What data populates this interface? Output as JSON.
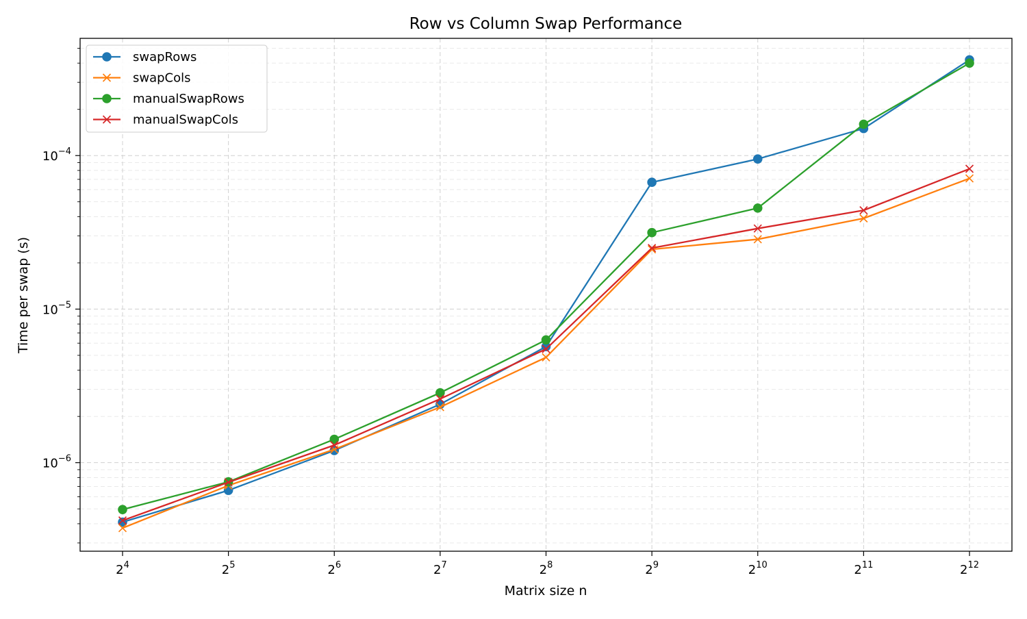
{
  "chart_data": {
    "type": "line",
    "title": "Row vs Column Swap Performance",
    "xlabel": "Matrix size n",
    "ylabel": "Time per swap (s)",
    "x_scale": "log2",
    "y_scale": "log10",
    "x": [
      16,
      32,
      64,
      128,
      256,
      512,
      1024,
      2048,
      4096
    ],
    "x_tick_labels": [
      {
        "base": "2",
        "exp": "4"
      },
      {
        "base": "2",
        "exp": "5"
      },
      {
        "base": "2",
        "exp": "6"
      },
      {
        "base": "2",
        "exp": "7"
      },
      {
        "base": "2",
        "exp": "8"
      },
      {
        "base": "2",
        "exp": "9"
      },
      {
        "base": "2",
        "exp": "10"
      },
      {
        "base": "2",
        "exp": "11"
      },
      {
        "base": "2",
        "exp": "12"
      }
    ],
    "y_tick_labels": [
      {
        "value": 1e-06,
        "base": "10",
        "exp": "−6"
      },
      {
        "value": 1e-05,
        "base": "10",
        "exp": "−5"
      },
      {
        "value": 0.0001,
        "base": "10",
        "exp": "−4"
      }
    ],
    "ylim": [
      2.65e-07,
      0.00058
    ],
    "grid": true,
    "legend_position": "top-left",
    "series": [
      {
        "name": "swapRows",
        "color": "#1f77b4",
        "marker": "circle",
        "values": [
          4.1e-07,
          6.6e-07,
          1.2e-06,
          2.4e-06,
          5.7e-06,
          6.7e-05,
          9.5e-05,
          0.00015,
          0.00042
        ]
      },
      {
        "name": "swapCols",
        "color": "#ff7f0e",
        "marker": "x",
        "values": [
          3.75e-07,
          7.1e-07,
          1.22e-06,
          2.3e-06,
          4.85e-06,
          2.45e-05,
          2.85e-05,
          3.9e-05,
          7.1e-05
        ]
      },
      {
        "name": "manualSwapRows",
        "color": "#2ca02c",
        "marker": "circle",
        "values": [
          4.95e-07,
          7.5e-07,
          1.42e-06,
          2.85e-06,
          6.3e-06,
          3.15e-05,
          4.55e-05,
          0.00016,
          0.0004
        ]
      },
      {
        "name": "manualSwapCols",
        "color": "#d62728",
        "marker": "x",
        "values": [
          4.2e-07,
          7.45e-07,
          1.3e-06,
          2.6e-06,
          5.5e-06,
          2.5e-05,
          3.35e-05,
          4.4e-05,
          8.2e-05
        ]
      }
    ]
  }
}
